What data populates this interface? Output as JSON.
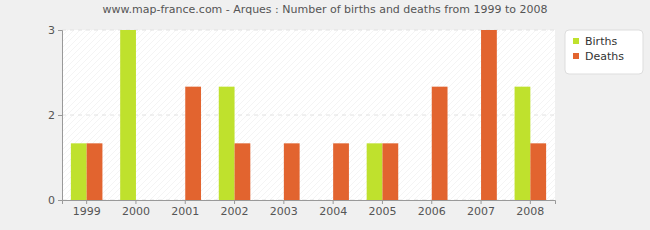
{
  "chart_data": {
    "type": "bar",
    "title": "www.map-france.com - Arques : Number of births and deaths from 1999 to 2008",
    "categories": [
      "1999",
      "2000",
      "2001",
      "2002",
      "2003",
      "2004",
      "2005",
      "2006",
      "2007",
      "2008"
    ],
    "series": [
      {
        "name": "Births",
        "color": "#bfe12d",
        "values": [
          1,
          3,
          0,
          2,
          0,
          0,
          1,
          0,
          0,
          2
        ]
      },
      {
        "name": "Deaths",
        "color": "#e2642f",
        "values": [
          1,
          0,
          2,
          1,
          1,
          1,
          1,
          2,
          3,
          1
        ]
      }
    ],
    "ylim": [
      0,
      3
    ],
    "yticks": [
      0,
      {
        "value": 1.5,
        "label": "2"
      },
      3
    ],
    "grid": true,
    "legend": "right"
  }
}
